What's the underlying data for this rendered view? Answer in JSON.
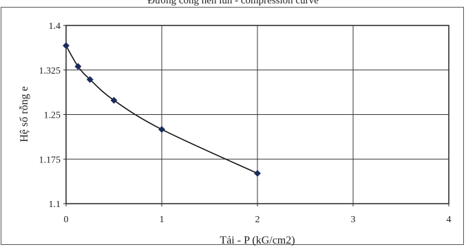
{
  "chart_data": {
    "type": "line",
    "title": "Đường cong nén lún - compression curve",
    "xlabel": "Tải - P (kG/cm2)",
    "ylabel": "Hệ số rỗng e",
    "xlim": [
      0,
      4
    ],
    "ylim": [
      1.1,
      1.4
    ],
    "x_ticks": [
      "0",
      "1",
      "2",
      "3",
      "4"
    ],
    "y_ticks": [
      "1.1",
      "1.175",
      "1.25",
      "1.325",
      "1.4"
    ],
    "grid": true,
    "legend": "none",
    "series": [
      {
        "x": [
          0,
          0.125,
          0.25,
          0.5,
          1,
          2
        ],
        "y": [
          1.366,
          1.331,
          1.309,
          1.274,
          1.225,
          1.151
        ]
      }
    ],
    "colors": {
      "line": "#111111",
      "marker": "#1a2c5c",
      "grid": "#333333"
    }
  }
}
